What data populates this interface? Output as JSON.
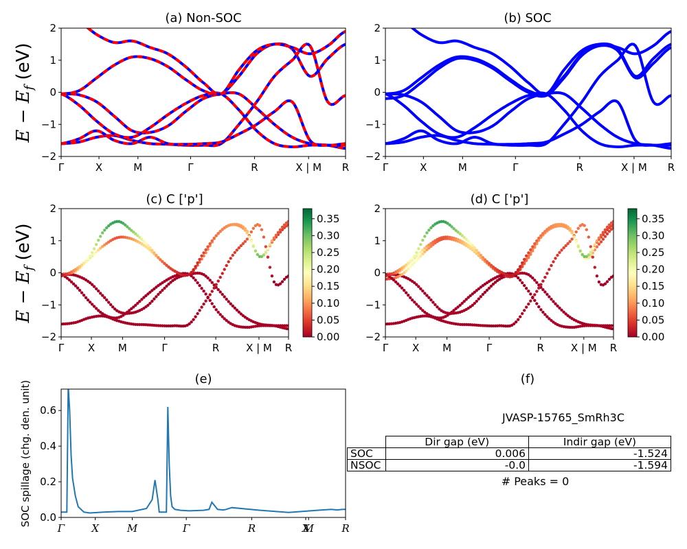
{
  "figure": {
    "y_axis_label_math": "E − E",
    "y_axis_label_sub": "f",
    "y_axis_label_unit": " (eV)",
    "k_labels": [
      "Γ",
      "X",
      "M",
      "Γ",
      "R",
      "X | M",
      "R"
    ],
    "k_labels_e": [
      "Γ",
      "X",
      "M",
      "Γ",
      "R",
      "X",
      "M",
      "R"
    ]
  },
  "colors": {
    "blue": "#0000ff",
    "red": "#ff0000",
    "spill": "#1f77b4"
  },
  "chart_data": [
    {
      "id": "a",
      "type": "line",
      "title": "(a) Non-SOC",
      "ylim": [
        -2,
        2
      ],
      "yticks": [
        "2",
        "1",
        "0",
        "−1",
        "−2"
      ],
      "series_colors": [
        "#0000ff",
        "#ff0000"
      ],
      "dashed": true,
      "bands": [
        [
          -0.05,
          -0.08,
          -0.3,
          -0.75,
          -1.2,
          -1.25,
          -1.05,
          -0.6,
          -0.2,
          -0.05,
          -0.05,
          -0.5,
          -1.0,
          -1.4,
          -1.6,
          -1.65,
          -1.75
        ],
        [
          -0.05,
          0.05,
          0.45,
          0.85,
          1.1,
          1.05,
          0.8,
          0.4,
          0.05,
          -0.05,
          0.5,
          1.2,
          1.5,
          1.35,
          0.5,
          1.05,
          1.5
        ],
        [
          -1.6,
          -1.55,
          -1.4,
          -1.35,
          -1.5,
          -1.6,
          -1.62,
          -1.65,
          -1.65,
          -1.6,
          -1.0,
          -0.3,
          0.5,
          1.0,
          1.45,
          -0.3,
          -0.1
        ],
        [
          -1.6,
          -1.45,
          -1.2,
          -1.5,
          -1.6,
          -1.4,
          -1.6,
          -1.62,
          -1.6,
          -1.55,
          -1.3,
          -1.0,
          -0.6,
          -0.3,
          -1.5,
          -1.65,
          -1.6
        ],
        [
          -0.05,
          -0.4,
          -0.9,
          -1.3,
          -1.4,
          -1.1,
          -0.7,
          -0.35,
          -0.1,
          -0.05,
          -0.55,
          -1.2,
          -1.6,
          -1.7,
          -1.65,
          -1.65,
          -1.65
        ],
        [
          2.3,
          2.2,
          1.8,
          1.55,
          1.6,
          1.4,
          1.2,
          0.8,
          0.3,
          -0.05,
          0.7,
          1.3,
          1.5,
          1.4,
          1.2,
          1.45,
          1.9
        ]
      ]
    },
    {
      "id": "b",
      "type": "line",
      "title": "(b) SOC",
      "ylim": [
        -2,
        2
      ],
      "yticks": [
        "2",
        "1",
        "0",
        "−1",
        "−2"
      ],
      "series_colors": [
        "#0000ff"
      ],
      "dashed": false,
      "bands": [
        [
          -0.05,
          -0.08,
          -0.3,
          -0.75,
          -1.2,
          -1.25,
          -1.05,
          -0.6,
          -0.2,
          -0.05,
          -0.05,
          -0.5,
          -1.0,
          -1.4,
          -1.6,
          -1.65,
          -1.75
        ],
        [
          -0.2,
          -0.1,
          0.3,
          0.75,
          1.05,
          1.0,
          0.75,
          0.35,
          0.0,
          -0.1,
          0.45,
          1.15,
          1.45,
          1.3,
          0.45,
          0.9,
          1.4
        ],
        [
          -0.05,
          0.05,
          0.45,
          0.85,
          1.1,
          1.05,
          0.8,
          0.4,
          0.05,
          -0.05,
          0.5,
          1.2,
          1.5,
          1.35,
          0.5,
          1.05,
          1.5
        ],
        [
          -1.6,
          -1.55,
          -1.4,
          -1.35,
          -1.5,
          -1.6,
          -1.62,
          -1.65,
          -1.65,
          -1.6,
          -1.0,
          -0.3,
          0.5,
          1.0,
          1.45,
          -0.3,
          -0.1
        ],
        [
          -1.6,
          -1.45,
          -1.2,
          -1.5,
          -1.6,
          -1.4,
          -1.6,
          -1.62,
          -1.6,
          -1.55,
          -1.3,
          -1.0,
          -0.6,
          -0.3,
          -1.5,
          -1.65,
          -1.6
        ],
        [
          -0.05,
          -0.4,
          -0.9,
          -1.3,
          -1.4,
          -1.1,
          -0.7,
          -0.35,
          -0.1,
          -0.05,
          -0.55,
          -1.2,
          -1.6,
          -1.7,
          -1.65,
          -1.65,
          -1.65
        ],
        [
          2.3,
          2.2,
          1.8,
          1.55,
          1.6,
          1.4,
          1.2,
          0.8,
          0.3,
          -0.05,
          0.7,
          1.3,
          1.5,
          1.4,
          1.2,
          1.45,
          1.9
        ]
      ]
    },
    {
      "id": "c",
      "type": "scatter",
      "title": "(c)  C ['p']",
      "ylim": [
        -2,
        2
      ],
      "yticks": [
        "2",
        "1",
        "0",
        "−1",
        "−2"
      ],
      "colorbar": {
        "min": 0.0,
        "max": 0.38,
        "ticks": [
          "0.35",
          "0.30",
          "0.25",
          "0.20",
          "0.15",
          "0.10",
          "0.05",
          "0.00"
        ],
        "colors": [
          "#a50026",
          "#d73027",
          "#f46d43",
          "#fdae61",
          "#fee08b",
          "#ffffbf",
          "#d9ef8b",
          "#a6d96a",
          "#66bd63",
          "#1a9850",
          "#006837"
        ]
      },
      "bands": [
        [
          -0.05,
          -0.08,
          -0.3,
          -0.75,
          -1.2,
          -1.25,
          -1.05,
          -0.6,
          -0.2,
          -0.05,
          -0.05,
          -0.5,
          -1.0,
          -1.4,
          -1.6,
          -1.65,
          -1.75
        ],
        [
          -0.05,
          0.05,
          0.45,
          0.85,
          1.1,
          1.05,
          0.8,
          0.4,
          0.05,
          -0.05,
          0.5,
          1.2,
          1.5,
          1.35,
          0.5,
          1.05,
          1.5
        ],
        [
          -1.6,
          -1.55,
          -1.4,
          -1.35,
          -1.5,
          -1.6,
          -1.62,
          -1.65,
          -1.65,
          -1.6,
          -1.0,
          -0.3,
          0.5,
          1.0,
          1.45,
          -0.3,
          -0.1
        ],
        [
          -0.05,
          -0.4,
          -0.9,
          -1.3,
          -1.4,
          -1.1,
          -0.7,
          -0.35,
          -0.1,
          -0.05,
          -0.55,
          -1.2,
          -1.6,
          -1.7,
          -1.65,
          -1.65,
          -1.65
        ],
        [
          -0.1,
          0.1,
          0.5,
          1.3,
          1.6,
          1.3,
          0.9,
          0.4,
          0.05,
          -0.05,
          0.6,
          1.2,
          1.5,
          1.3,
          0.5,
          1.1,
          1.6
        ]
      ],
      "band_weights": [
        [
          0.0,
          0.0,
          0.0,
          0.0,
          0.0,
          0.0,
          0.0,
          0.0,
          0.0,
          0.0,
          0.0,
          0.0,
          0.0,
          0.0,
          0.0,
          0.0,
          0.0
        ],
        [
          0.05,
          0.12,
          0.22,
          0.1,
          0.06,
          0.1,
          0.15,
          0.12,
          0.06,
          0.03,
          0.08,
          0.1,
          0.1,
          0.12,
          0.2,
          0.06,
          0.05
        ],
        [
          0.0,
          0.0,
          0.0,
          0.0,
          0.0,
          0.0,
          0.0,
          0.0,
          0.0,
          0.0,
          0.01,
          0.02,
          0.04,
          0.06,
          0.08,
          0.0,
          0.0
        ],
        [
          0.0,
          0.0,
          0.0,
          0.0,
          0.0,
          0.0,
          0.0,
          0.0,
          0.0,
          0.0,
          0.0,
          0.0,
          0.0,
          0.0,
          0.0,
          0.0,
          0.0
        ],
        [
          0.02,
          0.1,
          0.2,
          0.3,
          0.33,
          0.28,
          0.18,
          0.08,
          0.04,
          0.02,
          0.05,
          0.08,
          0.1,
          0.12,
          0.3,
          0.08,
          0.06
        ]
      ]
    },
    {
      "id": "d",
      "type": "scatter",
      "title": "(d) C ['p']",
      "ylim": [
        -2,
        2
      ],
      "yticks": [
        "2",
        "1",
        "0",
        "−1",
        "−2"
      ],
      "colorbar": {
        "min": 0.0,
        "max": 0.38,
        "ticks": [
          "0.35",
          "0.30",
          "0.25",
          "0.20",
          "0.15",
          "0.10",
          "0.05",
          "0.00"
        ],
        "colors": [
          "#a50026",
          "#d73027",
          "#f46d43",
          "#fdae61",
          "#fee08b",
          "#ffffbf",
          "#d9ef8b",
          "#a6d96a",
          "#66bd63",
          "#1a9850",
          "#006837"
        ]
      },
      "bands": [
        [
          -0.05,
          -0.08,
          -0.3,
          -0.75,
          -1.2,
          -1.25,
          -1.05,
          -0.6,
          -0.2,
          -0.05,
          -0.05,
          -0.5,
          -1.0,
          -1.4,
          -1.6,
          -1.65,
          -1.75
        ],
        [
          -0.2,
          -0.1,
          0.3,
          0.75,
          1.05,
          1.0,
          0.75,
          0.35,
          0.0,
          -0.1,
          0.45,
          1.15,
          1.45,
          1.3,
          0.45,
          0.9,
          1.4
        ],
        [
          -0.05,
          0.05,
          0.45,
          0.85,
          1.1,
          1.05,
          0.8,
          0.4,
          0.05,
          -0.05,
          0.5,
          1.2,
          1.5,
          1.35,
          0.5,
          1.05,
          1.5
        ],
        [
          -1.6,
          -1.55,
          -1.4,
          -1.35,
          -1.5,
          -1.6,
          -1.62,
          -1.65,
          -1.65,
          -1.6,
          -1.0,
          -0.3,
          0.5,
          1.0,
          1.45,
          -0.3,
          -0.1
        ],
        [
          -0.05,
          -0.4,
          -0.9,
          -1.3,
          -1.4,
          -1.1,
          -0.7,
          -0.35,
          -0.1,
          -0.05,
          -0.55,
          -1.2,
          -1.6,
          -1.7,
          -1.65,
          -1.65,
          -1.65
        ],
        [
          -0.1,
          0.1,
          0.5,
          1.3,
          1.6,
          1.3,
          0.9,
          0.4,
          0.05,
          -0.05,
          0.6,
          1.2,
          1.5,
          1.3,
          0.5,
          1.1,
          1.6
        ]
      ],
      "band_weights": [
        [
          0.0,
          0.0,
          0.0,
          0.0,
          0.0,
          0.0,
          0.0,
          0.0,
          0.0,
          0.0,
          0.0,
          0.0,
          0.0,
          0.0,
          0.0,
          0.0,
          0.0
        ],
        [
          0.04,
          0.1,
          0.2,
          0.1,
          0.06,
          0.1,
          0.14,
          0.1,
          0.05,
          0.03,
          0.08,
          0.1,
          0.1,
          0.12,
          0.18,
          0.06,
          0.05
        ],
        [
          0.05,
          0.12,
          0.22,
          0.1,
          0.06,
          0.1,
          0.15,
          0.12,
          0.06,
          0.03,
          0.08,
          0.1,
          0.1,
          0.12,
          0.2,
          0.06,
          0.05
        ],
        [
          0.0,
          0.0,
          0.0,
          0.0,
          0.0,
          0.0,
          0.0,
          0.0,
          0.0,
          0.0,
          0.01,
          0.02,
          0.04,
          0.06,
          0.08,
          0.0,
          0.0
        ],
        [
          0.0,
          0.0,
          0.0,
          0.0,
          0.0,
          0.0,
          0.0,
          0.0,
          0.0,
          0.0,
          0.0,
          0.0,
          0.0,
          0.0,
          0.0,
          0.0,
          0.0
        ],
        [
          0.02,
          0.1,
          0.2,
          0.3,
          0.33,
          0.28,
          0.18,
          0.08,
          0.04,
          0.02,
          0.05,
          0.08,
          0.1,
          0.12,
          0.3,
          0.08,
          0.06
        ]
      ]
    },
    {
      "id": "e",
      "type": "line",
      "title": "(e)",
      "ylabel": "SOC spillage (chg. den. unit)",
      "ylim": [
        0.0,
        0.72
      ],
      "yticks": [
        "0.6",
        "0.4",
        "0.2",
        "0.0"
      ],
      "series": [
        {
          "x": [
            0,
            0.01,
            0.02,
            0.025,
            0.03,
            0.035,
            0.04,
            0.05,
            0.06,
            0.08,
            0.1,
            0.15,
            0.2,
            0.25,
            0.3,
            0.32,
            0.33,
            0.34,
            0.345,
            0.36,
            0.37,
            0.375,
            0.38,
            0.385,
            0.39,
            0.4,
            0.42,
            0.45,
            0.5,
            0.5,
            0.52,
            0.53,
            0.55,
            0.57,
            0.58,
            0.6,
            0.7,
            0.8,
            0.9,
            0.95,
            0.97,
            0.99,
            1.0
          ],
          "y": [
            0.03,
            0.03,
            0.03,
            0.74,
            0.6,
            0.35,
            0.22,
            0.12,
            0.06,
            0.03,
            0.025,
            0.03,
            0.033,
            0.033,
            0.05,
            0.1,
            0.21,
            0.1,
            0.03,
            0.03,
            0.03,
            0.62,
            0.3,
            0.12,
            0.06,
            0.045,
            0.04,
            0.037,
            0.04,
            0.04,
            0.045,
            0.085,
            0.045,
            0.042,
            0.045,
            0.055,
            0.04,
            0.028,
            0.04,
            0.045,
            0.042,
            0.045,
            0.045
          ]
        }
      ]
    }
  ],
  "panel_f": {
    "title": "(f)",
    "jid": "JVASP-15765_SmRh3C",
    "table": {
      "headers": [
        "Dir gap (eV)",
        "Indir gap (eV)"
      ],
      "rows": [
        {
          "label": "SOC",
          "dir": "0.006",
          "indir": "-1.524"
        },
        {
          "label": "NSOC",
          "dir": "-0.0",
          "indir": "-1.594"
        }
      ]
    },
    "peaks": "# Peaks = 0"
  }
}
